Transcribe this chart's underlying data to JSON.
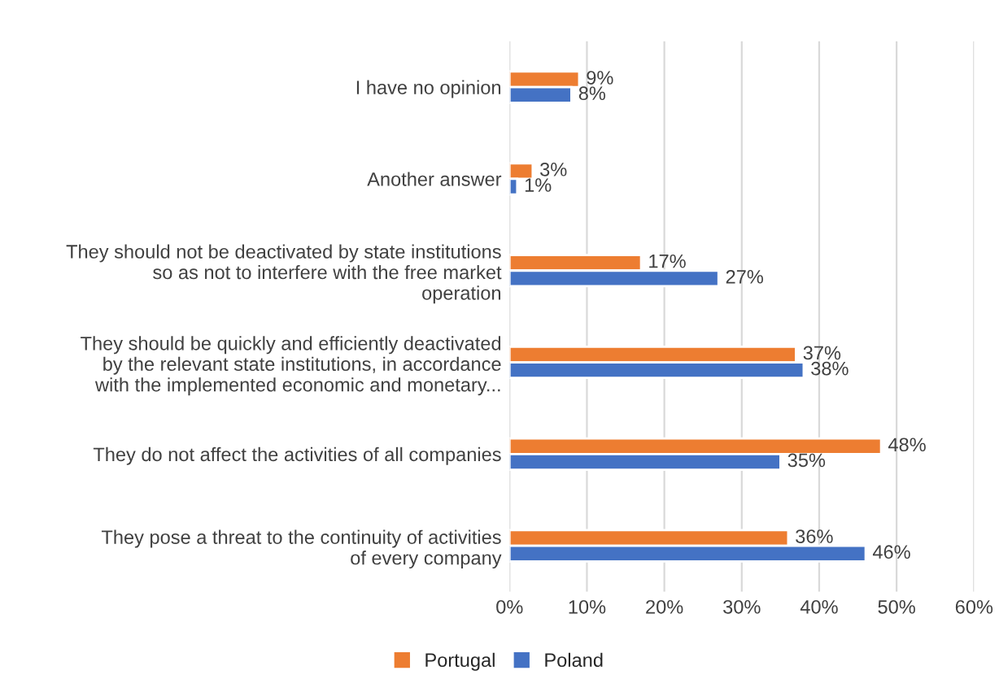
{
  "chart_data": {
    "type": "bar",
    "orientation": "horizontal",
    "categories": [
      "I have no opinion",
      "Another answer",
      "They should not be deactivated by state institutions so as not to interfere with the free market operation",
      "They should be quickly and efficiently deactivated by the relevant state institutions, in accordance with the implemented economic and monetary...",
      "They do not affect the activities of all companies",
      "They pose a threat to the continuity of activities of every company"
    ],
    "series": [
      {
        "name": "Portugal",
        "color": "#ed7d31",
        "values": [
          9,
          3,
          17,
          37,
          48,
          36
        ],
        "value_labels": [
          "9%",
          "3%",
          "17%",
          "37%",
          "48%",
          "36%"
        ]
      },
      {
        "name": "Poland",
        "color": "#4472c4",
        "values": [
          8,
          1,
          27,
          38,
          35,
          46
        ],
        "value_labels": [
          "8%",
          "1%",
          "27%",
          "38%",
          "35%",
          "46%"
        ]
      }
    ],
    "xlim": [
      0,
      60
    ],
    "xticks": [
      {
        "value": 0,
        "label": "0%"
      },
      {
        "value": 10,
        "label": "10%"
      },
      {
        "value": 20,
        "label": "20%"
      },
      {
        "value": 30,
        "label": "30%"
      },
      {
        "value": 40,
        "label": "40%"
      },
      {
        "value": 50,
        "label": "50%"
      },
      {
        "value": 60,
        "label": "60%"
      }
    ],
    "grid": "x",
    "legend": "bottom"
  }
}
